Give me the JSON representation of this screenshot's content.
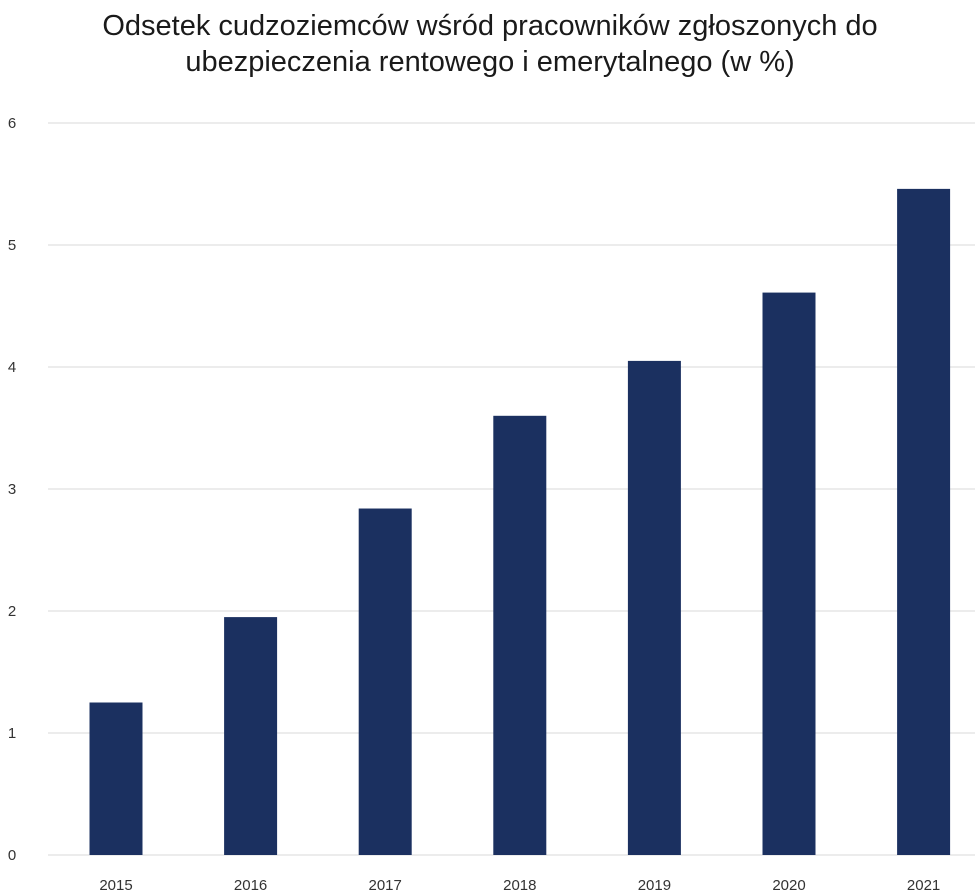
{
  "chart_data": {
    "type": "bar",
    "title_lines": [
      "Odsetek cudzoziemców wśród pracowników zgłoszonych do",
      "ubezpieczenia rentowego i emerytalnego (w %)"
    ],
    "categories": [
      "2015",
      "2016",
      "2017",
      "2018",
      "2019",
      "2020",
      "2021"
    ],
    "values": [
      1.25,
      1.95,
      2.84,
      3.6,
      4.05,
      4.61,
      5.46
    ],
    "y_ticks": [
      "0",
      "1",
      "2",
      "3",
      "4",
      "5",
      "6"
    ],
    "ylim": [
      0,
      6
    ],
    "grid": true,
    "legend": "none",
    "bar_color": "#1b3060",
    "grid_color": "#d9d9d9"
  }
}
